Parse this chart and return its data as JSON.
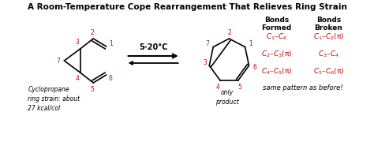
{
  "title": "A Room-Temperature Cope Rearrangement That Relieves Ring Strain",
  "title_fontsize": 7.5,
  "bg_color": "#ffffff",
  "text_color": "#000000",
  "red_color": "#cc0000",
  "blue_color": "#2255aa",
  "reaction_condition": "5-20°C",
  "italic_note": "Cyclopropane\nring strain: about\n27 kcal/col",
  "only_product": "only\nproduct",
  "same_pattern": "same pattern as before!",
  "bonds_formed_header": "Bonds\nFormed",
  "bonds_broken_header": "Bonds\nBroken",
  "bonds_formed_math": [
    "$C_1$–$C_6$",
    "$C_2$–$C_3$(π)",
    "$C_4$–$C_5$(π)"
  ],
  "bonds_broken_math": [
    "$C_1$–$C_2$(π)",
    "$C_3$–$C_4$",
    "$C_5$–$C_6$(π)"
  ]
}
